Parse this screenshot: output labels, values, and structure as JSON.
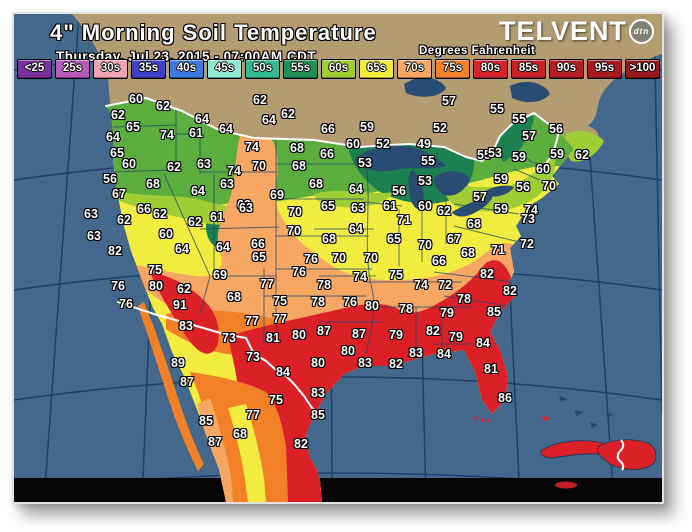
{
  "header": {
    "title": "4\" Morning Soil Temperature",
    "subtitle": "Thursday, Jul 23, 2015 - 07:00AM CDT",
    "units_label": "Degrees Fahrenheit",
    "brand": "TELVENT",
    "brand_badge": "dtn"
  },
  "colors": {
    "ocean": "#44688C",
    "graticule": "#1C3E66",
    "land": "#B39B72",
    "lakes": "#284C72",
    "band_dark_green": "#1C8050",
    "band_green": "#5BAE3E",
    "band_yellow_green": "#A0CC34",
    "band_yellow": "#F2EC40",
    "band_peach": "#F5A763",
    "band_orange": "#F28026",
    "band_red": "#DC2028",
    "border_line": "#FFFFFF",
    "bottom_band": "#060606"
  },
  "legend": {
    "items": [
      {
        "label": "<25",
        "color": "#7B2F9B"
      },
      {
        "label": "25s",
        "color": "#B85AB8"
      },
      {
        "label": "30s",
        "color": "#F2A3B3"
      },
      {
        "label": "35s",
        "color": "#4040C8"
      },
      {
        "label": "40s",
        "color": "#3E7AE0"
      },
      {
        "label": "45s",
        "color": "#8FE8D4"
      },
      {
        "label": "50s",
        "color": "#33BA8D"
      },
      {
        "label": "55s",
        "color": "#1F8F55"
      },
      {
        "label": "60s",
        "color": "#9ECC33"
      },
      {
        "label": "65s",
        "color": "#F2EA3F"
      },
      {
        "label": "70s",
        "color": "#F5A763"
      },
      {
        "label": "75s",
        "color": "#F28026"
      },
      {
        "label": "80s",
        "color": "#D8232B"
      },
      {
        "label": "85s",
        "color": "#C72026"
      },
      {
        "label": "90s",
        "color": "#B51D22"
      },
      {
        "label": "95s",
        "color": "#A81A1F"
      },
      {
        "label": ">100",
        "color": "#9A171B"
      }
    ]
  },
  "map": {
    "stations": [
      [
        60,
        122,
        85
      ],
      [
        62,
        149,
        92
      ],
      [
        62,
        104,
        101
      ],
      [
        65,
        119,
        113
      ],
      [
        64,
        99,
        123
      ],
      [
        74,
        153,
        121
      ],
      [
        61,
        182,
        119
      ],
      [
        64,
        188,
        105
      ],
      [
        64,
        212,
        115
      ],
      [
        62,
        246,
        86
      ],
      [
        64,
        255,
        106
      ],
      [
        62,
        274,
        100
      ],
      [
        65,
        103,
        139
      ],
      [
        60,
        115,
        150
      ],
      [
        62,
        160,
        153
      ],
      [
        63,
        190,
        150
      ],
      [
        74,
        220,
        157
      ],
      [
        70,
        245,
        152
      ],
      [
        74,
        238,
        133
      ],
      [
        56,
        96,
        165
      ],
      [
        68,
        139,
        170
      ],
      [
        63,
        213,
        170
      ],
      [
        64,
        184,
        177
      ],
      [
        67,
        105,
        180
      ],
      [
        69,
        263,
        181
      ],
      [
        68,
        302,
        170
      ],
      [
        63,
        230,
        191
      ],
      [
        63,
        77,
        200
      ],
      [
        62,
        110,
        206
      ],
      [
        66,
        130,
        195
      ],
      [
        62,
        146,
        200
      ],
      [
        62,
        181,
        208
      ],
      [
        61,
        203,
        203
      ],
      [
        63,
        232,
        194
      ],
      [
        63,
        80,
        222
      ],
      [
        60,
        152,
        220
      ],
      [
        64,
        168,
        235
      ],
      [
        64,
        209,
        233
      ],
      [
        66,
        244,
        230
      ],
      [
        65,
        245,
        243
      ],
      [
        82,
        101,
        237
      ],
      [
        75,
        141,
        256
      ],
      [
        69,
        206,
        261
      ],
      [
        76,
        104,
        272
      ],
      [
        80,
        142,
        272
      ],
      [
        62,
        170,
        275
      ],
      [
        77,
        253,
        270
      ],
      [
        68,
        220,
        283
      ],
      [
        76,
        112,
        290
      ],
      [
        91,
        166,
        291
      ],
      [
        89,
        164,
        349
      ],
      [
        87,
        173,
        368
      ],
      [
        83,
        172,
        312
      ],
      [
        85,
        192,
        407
      ],
      [
        87,
        201,
        428
      ],
      [
        68,
        226,
        420
      ],
      [
        82,
        287,
        430
      ],
      [
        77,
        239,
        401
      ],
      [
        85,
        304,
        401
      ],
      [
        83,
        304,
        379
      ],
      [
        75,
        262,
        386
      ],
      [
        73,
        239,
        343
      ],
      [
        73,
        215,
        324
      ],
      [
        70,
        281,
        198
      ],
      [
        65,
        314,
        192
      ],
      [
        63,
        344,
        194
      ],
      [
        61,
        376,
        192
      ],
      [
        60,
        411,
        192
      ],
      [
        62,
        430,
        197
      ],
      [
        71,
        390,
        206
      ],
      [
        70,
        280,
        217
      ],
      [
        68,
        315,
        225
      ],
      [
        64,
        342,
        215
      ],
      [
        65,
        380,
        225
      ],
      [
        70,
        411,
        231
      ],
      [
        67,
        440,
        225
      ],
      [
        76,
        297,
        245
      ],
      [
        70,
        325,
        244
      ],
      [
        70,
        357,
        244
      ],
      [
        66,
        425,
        247
      ],
      [
        68,
        454,
        239
      ],
      [
        76,
        285,
        258
      ],
      [
        74,
        346,
        263
      ],
      [
        75,
        382,
        261
      ],
      [
        74,
        407,
        271
      ],
      [
        72,
        431,
        271
      ],
      [
        75,
        266,
        287
      ],
      [
        78,
        310,
        271
      ],
      [
        78,
        304,
        288
      ],
      [
        76,
        336,
        288
      ],
      [
        80,
        358,
        292
      ],
      [
        78,
        392,
        295
      ],
      [
        78,
        450,
        285
      ],
      [
        79,
        433,
        299
      ],
      [
        66,
        314,
        115
      ],
      [
        59,
        353,
        113
      ],
      [
        57,
        435,
        87
      ],
      [
        52,
        426,
        114
      ],
      [
        60,
        339,
        130
      ],
      [
        52,
        369,
        130
      ],
      [
        49,
        410,
        130
      ],
      [
        66,
        313,
        140
      ],
      [
        68,
        283,
        134
      ],
      [
        68,
        285,
        152
      ],
      [
        53,
        351,
        149
      ],
      [
        55,
        414,
        147
      ],
      [
        55,
        470,
        141
      ],
      [
        53,
        411,
        167
      ],
      [
        64,
        342,
        175
      ],
      [
        56,
        385,
        177
      ],
      [
        57,
        466,
        183
      ],
      [
        55,
        483,
        95
      ],
      [
        55,
        505,
        105
      ],
      [
        57,
        515,
        122
      ],
      [
        56,
        542,
        115
      ],
      [
        53,
        481,
        139
      ],
      [
        59,
        505,
        143
      ],
      [
        59,
        543,
        140
      ],
      [
        62,
        568,
        141
      ],
      [
        60,
        529,
        155
      ],
      [
        59,
        487,
        165
      ],
      [
        56,
        509,
        173
      ],
      [
        70,
        535,
        172
      ],
      [
        59,
        487,
        195
      ],
      [
        74,
        517,
        196
      ],
      [
        73,
        514,
        205
      ],
      [
        68,
        460,
        210
      ],
      [
        72,
        513,
        230
      ],
      [
        71,
        484,
        236
      ],
      [
        82,
        473,
        260
      ],
      [
        82,
        496,
        277
      ],
      [
        85,
        480,
        298
      ],
      [
        79,
        442,
        323
      ],
      [
        82,
        419,
        317
      ],
      [
        84,
        469,
        329
      ],
      [
        84,
        430,
        340
      ],
      [
        83,
        402,
        339
      ],
      [
        82,
        382,
        350
      ],
      [
        83,
        351,
        349
      ],
      [
        80,
        304,
        349
      ],
      [
        80,
        334,
        337
      ],
      [
        81,
        259,
        324
      ],
      [
        80,
        285,
        321
      ],
      [
        87,
        310,
        317
      ],
      [
        87,
        345,
        320
      ],
      [
        79,
        382,
        321
      ],
      [
        77,
        238,
        307
      ],
      [
        77,
        266,
        305
      ],
      [
        84,
        269,
        358
      ],
      [
        81,
        477,
        355
      ],
      [
        86,
        491,
        384
      ]
    ]
  }
}
